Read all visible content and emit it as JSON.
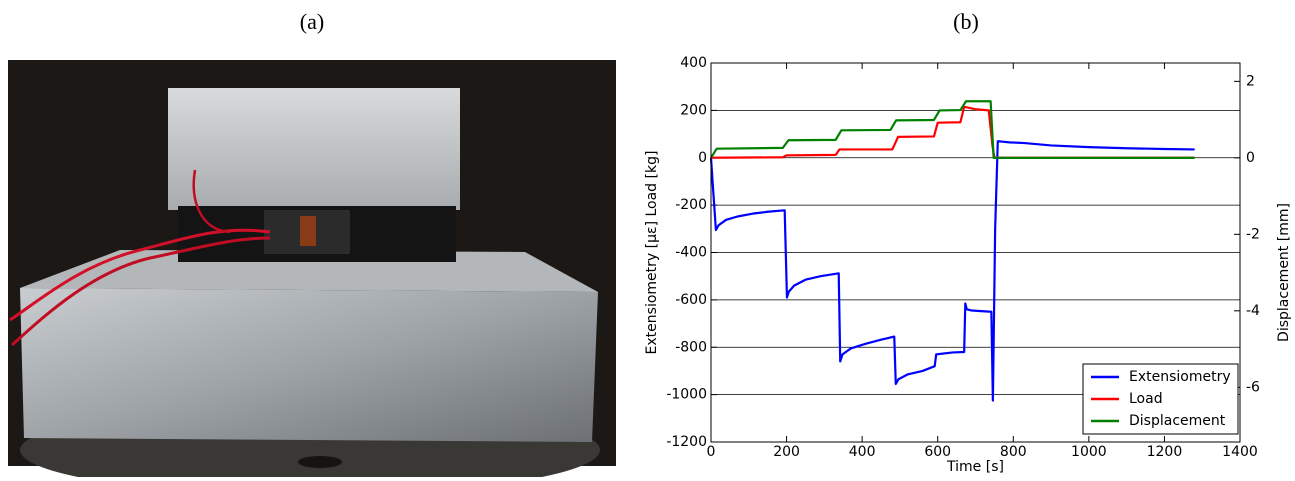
{
  "labels": {
    "a": "(a)",
    "b": "(b)"
  },
  "chart_data": {
    "type": "line",
    "xlabel": "Time [s]",
    "ylabel": "Extensiometry [με] Load [kg]",
    "y2label": "Displacement [mm]",
    "xlim": [
      0,
      1400
    ],
    "xticks": [
      0,
      200,
      400,
      600,
      800,
      1000,
      1200,
      1400
    ],
    "ylim": [
      -1200,
      400
    ],
    "yticks": [
      -1200,
      -1000,
      -800,
      -600,
      -400,
      -200,
      0,
      200,
      400
    ],
    "y2lim": [
      -7.43,
      2.48
    ],
    "y2ticks": [
      -6,
      -4,
      -2,
      0,
      2
    ],
    "grid": true,
    "legend": "lower right",
    "series": [
      {
        "name": "Extensiometry",
        "color": "#0000ff",
        "axis": "y",
        "x": [
          0,
          5,
          13,
          20,
          40,
          70,
          110,
          150,
          195,
          201,
          206,
          220,
          250,
          290,
          338,
          342,
          348,
          370,
          410,
          450,
          485,
          489,
          496,
          520,
          560,
          592,
          596,
          640,
          670,
          673,
          677,
          690,
          720,
          742,
          746,
          752,
          759,
          790,
          830,
          900,
          1000,
          1100,
          1200,
          1280
        ],
        "values": [
          0,
          -120,
          -305,
          -285,
          -262,
          -248,
          -236,
          -228,
          -222,
          -590,
          -565,
          -540,
          -515,
          -500,
          -488,
          -860,
          -830,
          -805,
          -785,
          -768,
          -755,
          -955,
          -935,
          -915,
          -900,
          -880,
          -830,
          -822,
          -820,
          -615,
          -640,
          -645,
          -648,
          -650,
          -1025,
          -300,
          70,
          65,
          62,
          52,
          45,
          40,
          37,
          35
        ]
      },
      {
        "name": "Load",
        "color": "#ff0000",
        "axis": "y",
        "x": [
          0,
          190,
          200,
          330,
          340,
          480,
          495,
          590,
          600,
          660,
          670,
          700,
          735,
          745,
          750,
          1280
        ],
        "values": [
          0,
          2,
          10,
          12,
          35,
          35,
          88,
          90,
          148,
          150,
          215,
          205,
          200,
          50,
          0,
          0
        ]
      },
      {
        "name": "Displacement",
        "color": "#008000",
        "axis": "y2",
        "x": [
          0,
          15,
          190,
          205,
          330,
          345,
          475,
          490,
          590,
          605,
          660,
          675,
          740,
          748,
          1280
        ],
        "values": [
          0,
          0.24,
          0.26,
          0.46,
          0.47,
          0.72,
          0.73,
          0.98,
          0.99,
          1.24,
          1.25,
          1.48,
          1.48,
          0,
          0
        ]
      }
    ]
  }
}
